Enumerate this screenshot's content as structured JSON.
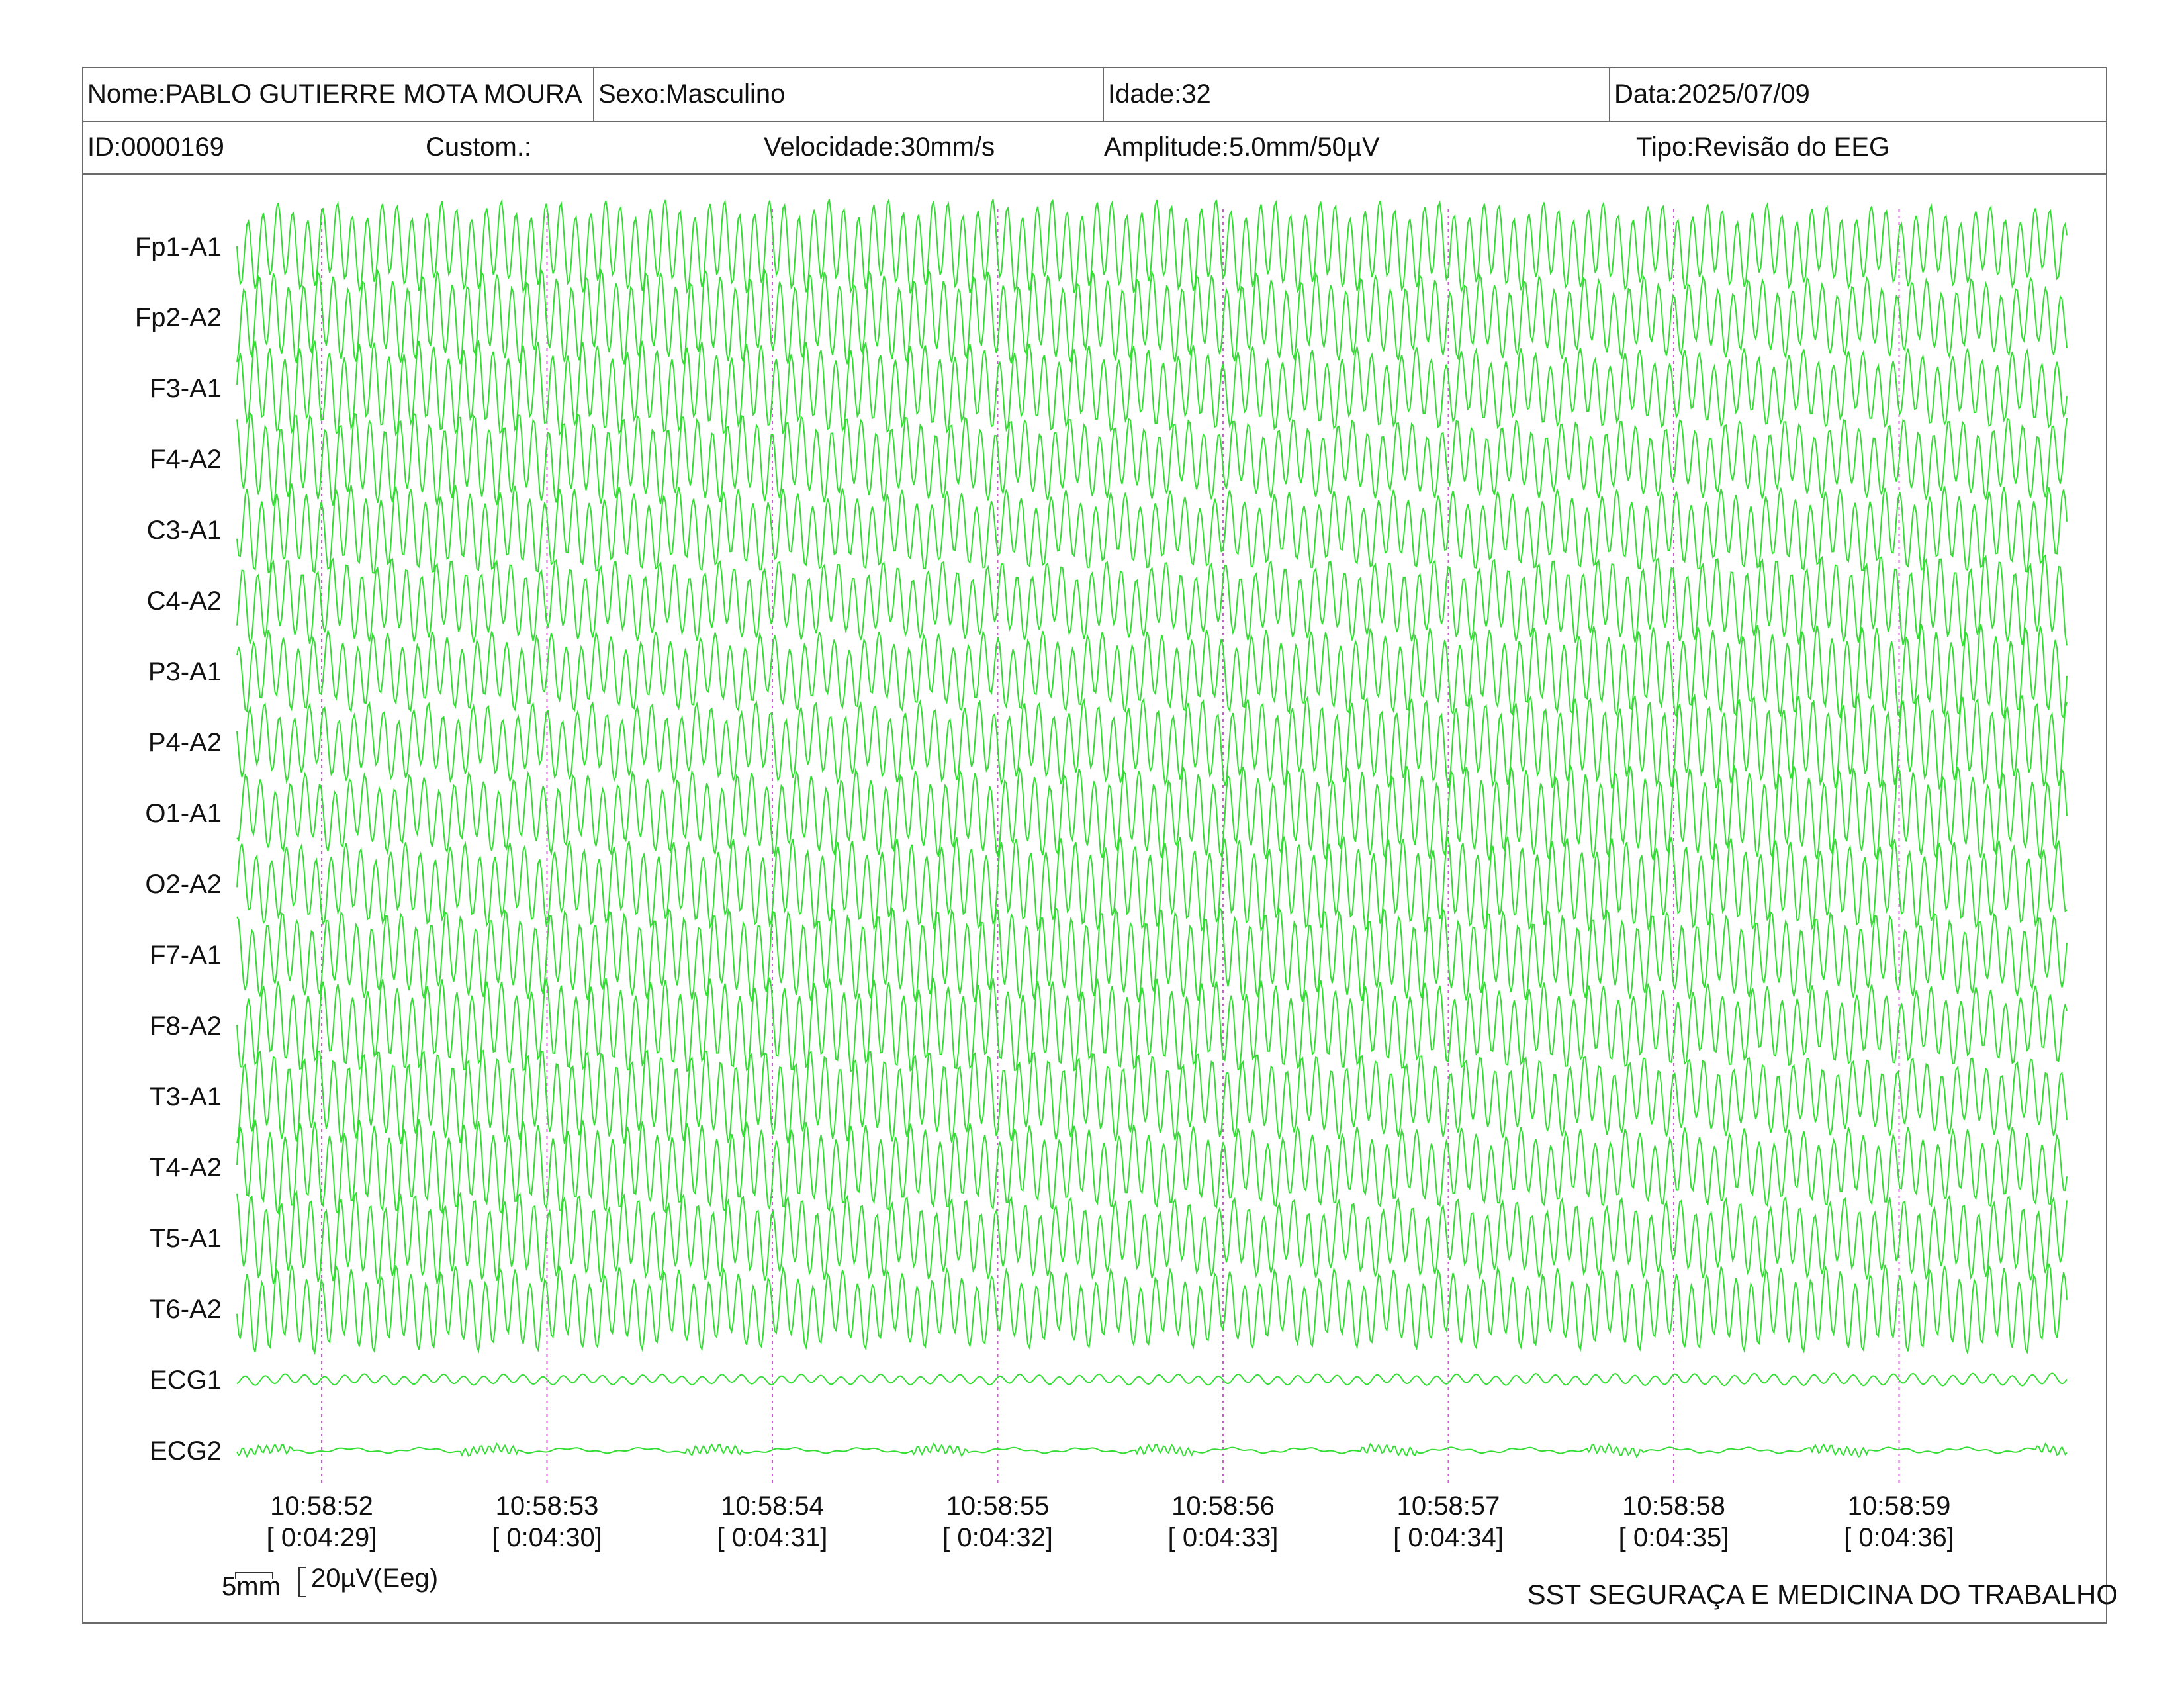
{
  "header": {
    "name": "Nome:PABLO GUTIERRE MOTA MOURA",
    "sex": "Sexo:Masculino",
    "age": "Idade:32",
    "date": "Data:2025/07/09",
    "id": "ID:0000169",
    "custom": "Custom.:",
    "speed": "Velocidade:30mm/s",
    "amplitude": "Amplitude:5.0mm/50µV",
    "type": "Tipo:Revisão do EEG"
  },
  "footer": {
    "scale_mm": "5mm",
    "scale_uv": "20µV(Eeg)",
    "org": "SST SEGURAÇA E MEDICINA DO TRABALHO"
  },
  "colors": {
    "trace": "#33dd33",
    "marker": "#d056d6",
    "border": "#6a6a6a"
  },
  "chart_data": {
    "type": "line",
    "title": "",
    "xlabel": "",
    "ylabel": "",
    "channels": [
      "Fp1-A1",
      "Fp2-A2",
      "F3-A1",
      "F4-A2",
      "C3-A1",
      "C4-A2",
      "P3-A1",
      "P4-A2",
      "O1-A1",
      "O2-A2",
      "F7-A1",
      "F8-A2",
      "T3-A1",
      "T4-A2",
      "T5-A1",
      "T6-A2",
      "ECG1",
      "ECG2"
    ],
    "time_markers": [
      {
        "clock": "10:58:52",
        "elapsed": "[ 0:04:29]"
      },
      {
        "clock": "10:58:53",
        "elapsed": "[ 0:04:30]"
      },
      {
        "clock": "10:58:54",
        "elapsed": "[ 0:04:31]"
      },
      {
        "clock": "10:58:55",
        "elapsed": "[ 0:04:32]"
      },
      {
        "clock": "10:58:56",
        "elapsed": "[ 0:04:33]"
      },
      {
        "clock": "10:58:57",
        "elapsed": "[ 0:04:34]"
      },
      {
        "clock": "10:58:58",
        "elapsed": "[ 0:04:35]"
      },
      {
        "clock": "10:58:59",
        "elapsed": "[ 0:04:36]"
      }
    ],
    "grid": false
  }
}
